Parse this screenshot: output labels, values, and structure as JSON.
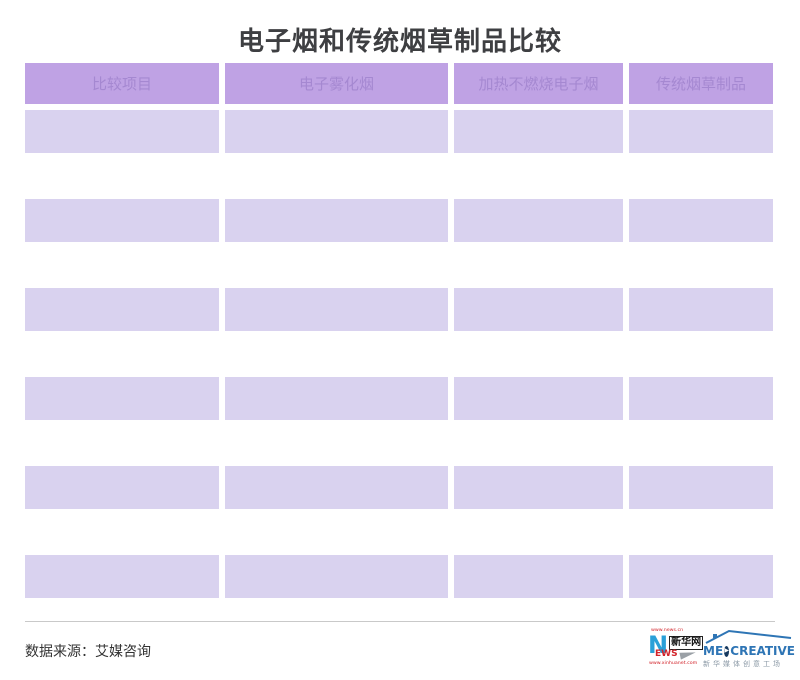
{
  "title": "电子烟和传统烟草制品比较",
  "chart_data": {
    "type": "table",
    "title": "电子烟和传统烟草制品比较",
    "columns": [
      "比较项目",
      "电子雾化烟",
      "加热不燃烧电子烟",
      "传统烟草制品"
    ],
    "rows": [
      [
        "",
        "",
        "",
        ""
      ],
      [
        "",
        "",
        "",
        ""
      ],
      [
        "",
        "",
        "",
        ""
      ],
      [
        "",
        "",
        "",
        ""
      ],
      [
        "",
        "",
        "",
        ""
      ],
      [
        "",
        "",
        "",
        ""
      ],
      [
        "",
        "",
        "",
        ""
      ],
      [
        "",
        "",
        "",
        ""
      ],
      [
        "",
        "",
        "",
        ""
      ],
      [
        "",
        "",
        "",
        ""
      ],
      [
        "",
        "",
        "",
        ""
      ]
    ],
    "source": "艾媒咨询"
  },
  "footer": {
    "source": "数据来源：艾媒咨询",
    "xinhua_logo": {
      "url_top": "www.news.cn",
      "n": "N",
      "name": "新华网",
      "ews": "EWS",
      "url_bottom": "www.xinhuanet.com"
    },
    "med_logo": {
      "me": "ME",
      "play": "▶",
      "creative": "CREATIVE",
      "subtitle": "新华媒体创意工场"
    }
  },
  "colors": {
    "header_bg": "#bfa2e4",
    "header_text": "#a588d1",
    "row_shaded": "#d9d2ef",
    "title_text": "#3e3f42",
    "divider": "#c9c9c9",
    "xinhua_blue": "#2aa0d8",
    "xinhua_red": "#d2232a",
    "med_blue": "#2e75b5"
  }
}
